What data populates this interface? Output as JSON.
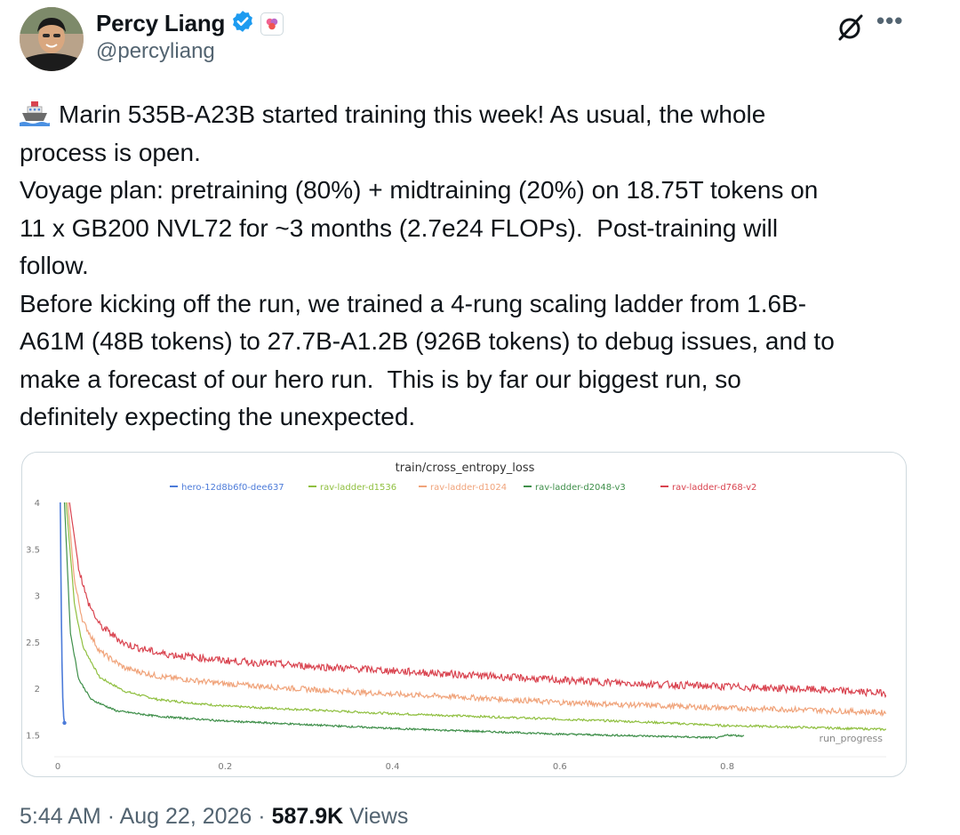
{
  "author": {
    "name": "Percy Liang",
    "handle": "@percyliang"
  },
  "tweet": {
    "emoji": "ship-emoji",
    "lines": [
      "Marin 535B-A23B started training this week! As usual, the whole",
      "process is open.",
      "Voyage plan: pretraining (80%) + midtraining (20%) on 18.75T tokens on",
      "11 x GB200 NVL72 for ~3 months (2.7e24 FLOPs).  Post-training will",
      "follow.",
      "Before kicking off the run, we trained a 4-rung scaling ladder from 1.6B-",
      "A61M (48B tokens) to 27.7B-A1.2B (926B tokens) to debug issues, and to",
      "make a forecast of our hero run.  This is by far our biggest run, so",
      "definitely expecting the unexpected."
    ]
  },
  "meta": {
    "time": "5:44 AM",
    "date": "Aug 22, 2026",
    "views_count": "587.9K",
    "views_label": "Views",
    "separator": "·"
  },
  "colors": {
    "verified": "#1d9bf0",
    "text": "#0f1419",
    "muted": "#536471"
  },
  "chart_data": {
    "type": "line",
    "title": "train/cross_entropy_loss",
    "xlabel": "run_progress",
    "ylabel": "",
    "xlim": [
      0,
      0.99
    ],
    "ylim": [
      1.4,
      4.0
    ],
    "x_ticks": [
      "0",
      "0.2",
      "0.4",
      "0.6",
      "0.8"
    ],
    "y_ticks": [
      "1.5",
      "2",
      "2.5",
      "3",
      "3.5",
      "4"
    ],
    "grid": false,
    "legend_position": "top",
    "series": [
      {
        "name": "hero-12d8b6f0-dee637",
        "color": "#4c7bd9",
        "x": [
          0.003,
          0.004,
          0.005,
          0.006,
          0.007,
          0.008
        ],
        "y": [
          4.0,
          3.0,
          2.3,
          1.9,
          1.7,
          1.63
        ]
      },
      {
        "name": "rav-ladder-d1536",
        "color": "#8fbf3f",
        "x": [
          0.01,
          0.02,
          0.03,
          0.05,
          0.08,
          0.12,
          0.2,
          0.3,
          0.4,
          0.5,
          0.6,
          0.7,
          0.8,
          0.81,
          0.9,
          0.99
        ],
        "y": [
          4.0,
          2.9,
          2.45,
          2.12,
          1.97,
          1.88,
          1.81,
          1.77,
          1.73,
          1.7,
          1.67,
          1.64,
          1.6,
          1.6,
          1.58,
          1.56
        ]
      },
      {
        "name": "rav-ladder-d1024",
        "color": "#f0a37a",
        "x": [
          0.012,
          0.02,
          0.03,
          0.05,
          0.08,
          0.12,
          0.2,
          0.3,
          0.4,
          0.5,
          0.6,
          0.7,
          0.8,
          0.9,
          0.99
        ],
        "y": [
          4.0,
          3.15,
          2.72,
          2.4,
          2.22,
          2.13,
          2.05,
          1.99,
          1.94,
          1.9,
          1.85,
          1.82,
          1.79,
          1.77,
          1.74
        ]
      },
      {
        "name": "rav-ladder-d2048-v3",
        "color": "#3f8f4a",
        "x": [
          0.008,
          0.015,
          0.025,
          0.04,
          0.07,
          0.12,
          0.2,
          0.3,
          0.4,
          0.5,
          0.6,
          0.7,
          0.79,
          0.8,
          0.82
        ],
        "y": [
          4.0,
          2.6,
          2.1,
          1.88,
          1.76,
          1.7,
          1.65,
          1.61,
          1.57,
          1.54,
          1.51,
          1.49,
          1.47,
          1.5,
          1.49
        ]
      },
      {
        "name": "rav-ladder-d768-v2",
        "color": "#d9434f",
        "x": [
          0.014,
          0.025,
          0.035,
          0.05,
          0.08,
          0.12,
          0.2,
          0.3,
          0.4,
          0.5,
          0.6,
          0.7,
          0.8,
          0.9,
          0.99
        ],
        "y": [
          4.0,
          3.3,
          2.95,
          2.68,
          2.48,
          2.38,
          2.3,
          2.24,
          2.19,
          2.14,
          2.09,
          2.05,
          2.02,
          1.99,
          1.95
        ]
      }
    ]
  }
}
